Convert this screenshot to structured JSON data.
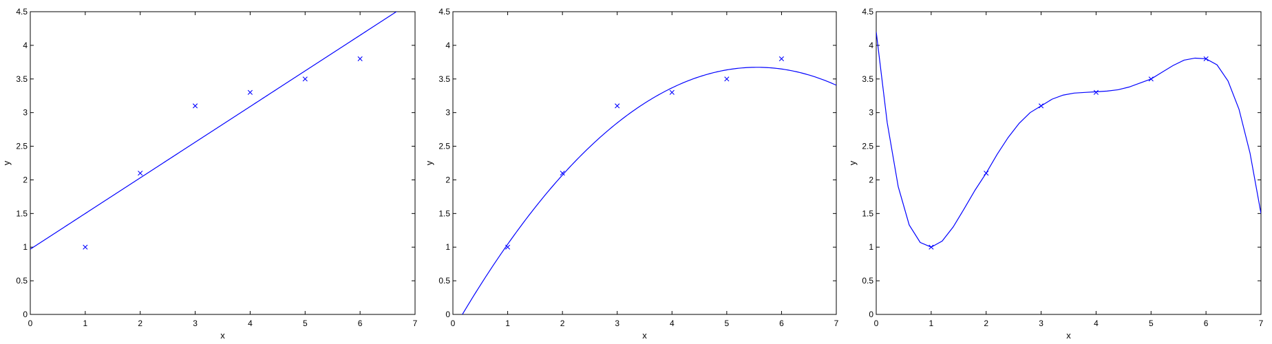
{
  "chart_data": [
    {
      "type": "scatter",
      "xlabel": "x",
      "ylabel": "y",
      "xlim": [
        0,
        7
      ],
      "ylim": [
        0,
        4.5
      ],
      "xticks": [
        "0",
        "1",
        "2",
        "3",
        "4",
        "5",
        "6",
        "7"
      ],
      "yticks": [
        "0",
        "0.5",
        "1",
        "1.5",
        "2",
        "2.5",
        "3",
        "3.5",
        "4",
        "4.5"
      ],
      "points": {
        "x": [
          1,
          2,
          3,
          4,
          5,
          6
        ],
        "y": [
          1.0,
          2.1,
          3.1,
          3.3,
          3.5,
          3.8
        ]
      },
      "fit": {
        "degree": 1,
        "coefficients": [
          0.97,
          0.53
        ]
      },
      "grid": false
    },
    {
      "type": "scatter",
      "xlabel": "x",
      "ylabel": "y",
      "xlim": [
        0,
        7
      ],
      "ylim": [
        0,
        4.5
      ],
      "xticks": [
        "0",
        "1",
        "2",
        "3",
        "4",
        "5",
        "6",
        "7"
      ],
      "yticks": [
        "0",
        "0.5",
        "1",
        "1.5",
        "2",
        "2.5",
        "3",
        "3.5",
        "4",
        "4.5"
      ],
      "points": {
        "x": [
          1,
          2,
          3,
          4,
          5,
          6
        ],
        "y": [
          1.0,
          2.1,
          3.1,
          3.3,
          3.5,
          3.8
        ]
      },
      "fit": {
        "degree": 2,
        "coefficients": [
          -0.24,
          1.41,
          -0.127
        ]
      },
      "grid": false
    },
    {
      "type": "scatter",
      "xlabel": "x",
      "ylabel": "y",
      "xlim": [
        0,
        7
      ],
      "ylim": [
        0,
        4.5
      ],
      "xticks": [
        "0",
        "1",
        "2",
        "3",
        "4",
        "5",
        "6",
        "7"
      ],
      "yticks": [
        "0",
        "0.5",
        "1",
        "1.5",
        "2",
        "2.5",
        "3",
        "3.5",
        "4",
        "4.5"
      ],
      "points": {
        "x": [
          1,
          2,
          3,
          4,
          5,
          6
        ],
        "y": [
          1.0,
          2.1,
          3.1,
          3.3,
          3.5,
          3.8
        ]
      },
      "curve": {
        "x": [
          0,
          0.2,
          0.4,
          0.6,
          0.8,
          1.0,
          1.2,
          1.4,
          1.6,
          1.8,
          2.0,
          2.2,
          2.4,
          2.6,
          2.8,
          3.0,
          3.2,
          3.4,
          3.6,
          3.8,
          4.0,
          4.2,
          4.4,
          4.6,
          4.8,
          5.0,
          5.2,
          5.4,
          5.6,
          5.8,
          6.0,
          6.2,
          6.4,
          6.6,
          6.8,
          7.0
        ],
        "y": [
          4.2,
          2.85,
          1.9,
          1.33,
          1.07,
          1.0,
          1.09,
          1.3,
          1.57,
          1.85,
          2.1,
          2.38,
          2.63,
          2.84,
          3.0,
          3.1,
          3.2,
          3.26,
          3.29,
          3.3,
          3.31,
          3.32,
          3.34,
          3.38,
          3.44,
          3.5,
          3.6,
          3.7,
          3.78,
          3.81,
          3.8,
          3.71,
          3.47,
          3.05,
          2.4,
          1.5
        ]
      },
      "grid": false
    }
  ],
  "colors": {
    "series": "#0000ff",
    "axes": "#000000"
  }
}
